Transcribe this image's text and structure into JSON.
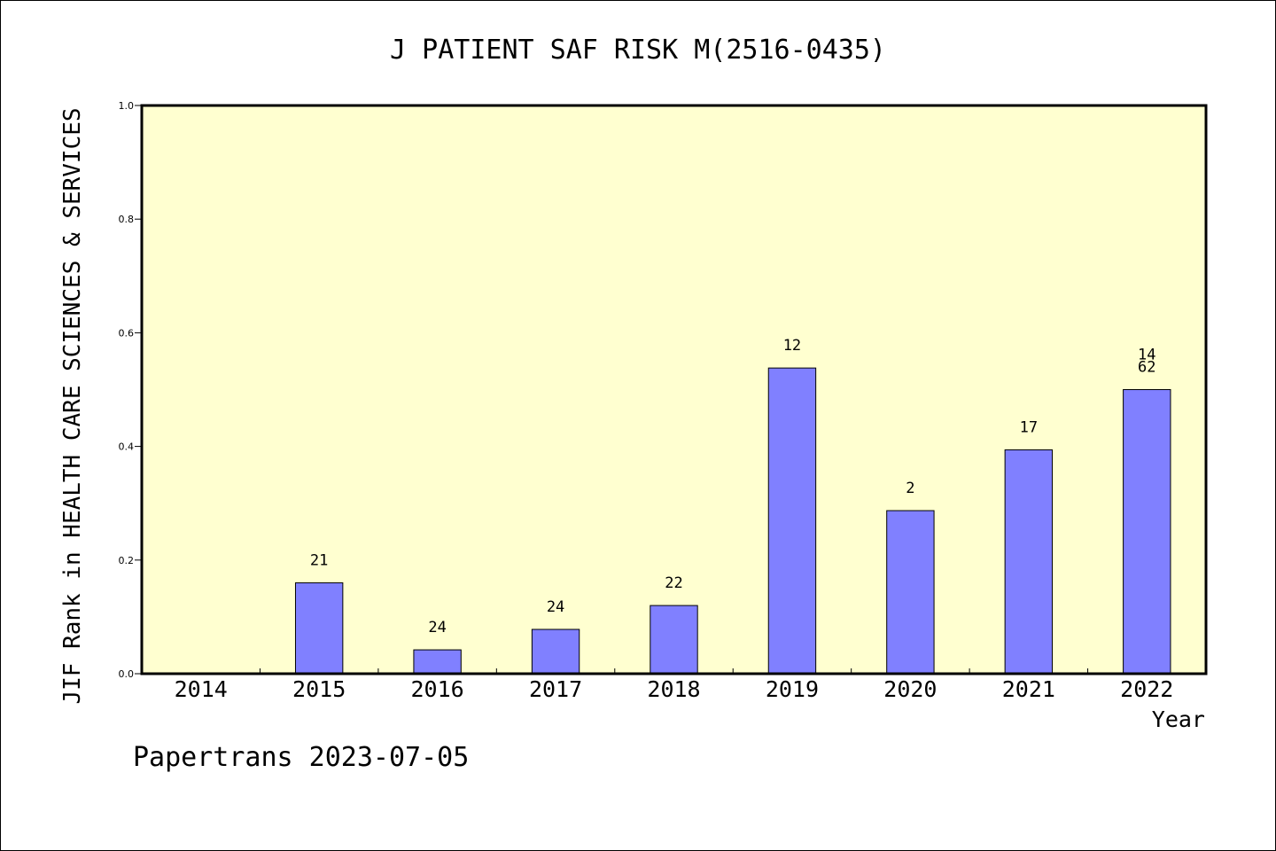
{
  "chart_data": {
    "type": "bar",
    "title": "J PATIENT SAF RISK M(2516-0435)",
    "xlabel": "Year",
    "ylabel": "JIF Rank in HEALTH CARE SCIENCES & SERVICES",
    "categories": [
      "2014",
      "2015",
      "2016",
      "2017",
      "2018",
      "2019",
      "2020",
      "2021",
      "2022"
    ],
    "values": [
      null,
      0.16,
      0.042,
      0.078,
      0.12,
      0.538,
      0.287,
      0.394,
      0.5
    ],
    "labels": [
      [],
      [
        "21"
      ],
      [
        "24"
      ],
      [
        "24"
      ],
      [
        "22"
      ],
      [
        "12"
      ],
      [
        "2"
      ],
      [
        "17"
      ],
      [
        "14",
        "62"
      ]
    ],
    "ylim": [
      0,
      1.0
    ],
    "yticks": [
      "0.0",
      "0.2",
      "0.4",
      "0.6",
      "0.8",
      "1.0"
    ],
    "grid": false,
    "colors": {
      "bar": "#8080ff",
      "plot_background": "#ffffd0",
      "axis": "#000000"
    }
  },
  "footer": {
    "credit": "Papertrans 2023-07-05"
  }
}
